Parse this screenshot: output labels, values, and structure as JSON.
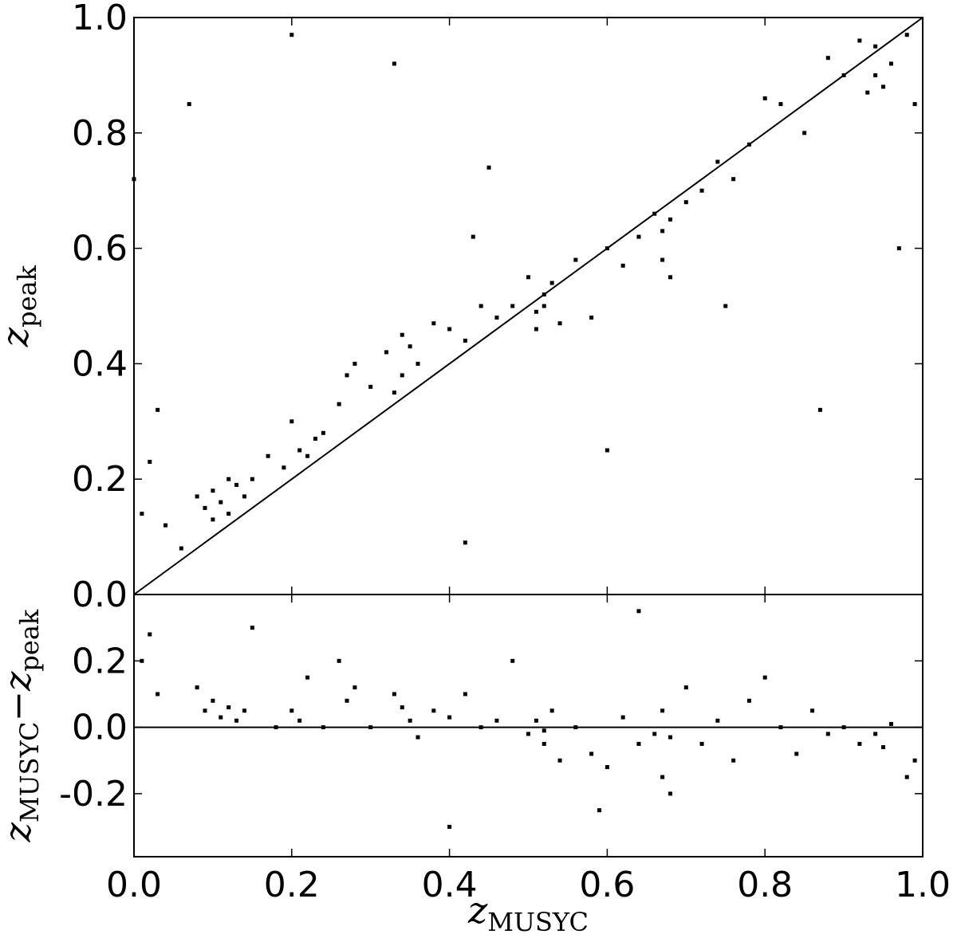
{
  "chart_data": [
    {
      "type": "scatter",
      "ylabel": [
        "z",
        "peak"
      ],
      "color": "#000000",
      "diagonal": true,
      "xlim": [
        0,
        1
      ],
      "ylim": [
        0,
        1
      ],
      "yticks": [
        {
          "value": 0,
          "label": "0.0"
        },
        0.2,
        0.4,
        0.6,
        0.8,
        {
          "value": 1,
          "label": "1.0"
        }
      ],
      "x": [
        0.01,
        0.02,
        0.03,
        0.04,
        0.06,
        0.08,
        0.09,
        0.1,
        0.1,
        0.11,
        0.12,
        0.12,
        0.13,
        0.14,
        0.15,
        0.17,
        0.19,
        0.2,
        0.21,
        0.22,
        0.23,
        0.24,
        0.26,
        0.27,
        0.28,
        0.3,
        0.32,
        0.33,
        0.34,
        0.34,
        0.35,
        0.36,
        0.38,
        0.4,
        0.42,
        0.44,
        0.46,
        0.48,
        0.5,
        0.51,
        0.51,
        0.52,
        0.52,
        0.53,
        0.54,
        0.56,
        0.58,
        0.6,
        0.62,
        0.64,
        0.66,
        0.67,
        0.67,
        0.68,
        0.68,
        0.7,
        0.72,
        0.74,
        0.76,
        0.78,
        0.8,
        0.82,
        0.85,
        0.88,
        0.9,
        0.92,
        0.93,
        0.94,
        0.94,
        0.95,
        0.96,
        0.98,
        0.99,
        0.07,
        0.2,
        0.33,
        0.45,
        0.6,
        0.75,
        0.87,
        0.0,
        0.43,
        0.97,
        0.42
      ],
      "values": [
        0.14,
        0.23,
        0.32,
        0.12,
        0.08,
        0.17,
        0.15,
        0.18,
        0.13,
        0.16,
        0.2,
        0.14,
        0.19,
        0.17,
        0.2,
        0.24,
        0.22,
        0.3,
        0.25,
        0.24,
        0.27,
        0.28,
        0.33,
        0.38,
        0.4,
        0.36,
        0.42,
        0.35,
        0.38,
        0.45,
        0.43,
        0.4,
        0.47,
        0.46,
        0.44,
        0.5,
        0.48,
        0.5,
        0.55,
        0.49,
        0.46,
        0.52,
        0.5,
        0.54,
        0.47,
        0.58,
        0.48,
        0.6,
        0.57,
        0.62,
        0.66,
        0.63,
        0.58,
        0.65,
        0.55,
        0.68,
        0.7,
        0.75,
        0.72,
        0.78,
        0.86,
        0.85,
        0.8,
        0.93,
        0.9,
        0.96,
        0.87,
        0.9,
        0.95,
        0.88,
        0.92,
        0.97,
        0.85,
        0.85,
        0.97,
        0.92,
        0.74,
        0.25,
        0.5,
        0.32,
        0.72,
        0.62,
        0.6,
        0.09
      ]
    },
    {
      "type": "scatter",
      "ylabel": [
        "z",
        "MUSYC",
        "−z",
        "peak"
      ],
      "xlabel": [
        "z",
        "MUSYC"
      ],
      "color": "#000000",
      "hline": 0,
      "xlim": [
        0,
        1
      ],
      "ylim": [
        -0.39,
        0.4
      ],
      "xticks": [
        {
          "value": 0,
          "label": "0.0"
        },
        0.2,
        0.4,
        0.6,
        0.8,
        {
          "value": 1,
          "label": "1.0"
        }
      ],
      "yticks": [
        -0.2,
        {
          "value": 0,
          "label": "0.0"
        },
        0.2
      ],
      "x": [
        0.01,
        0.02,
        0.03,
        0.08,
        0.09,
        0.1,
        0.11,
        0.12,
        0.13,
        0.14,
        0.15,
        0.18,
        0.2,
        0.21,
        0.22,
        0.24,
        0.26,
        0.27,
        0.28,
        0.3,
        0.33,
        0.34,
        0.35,
        0.36,
        0.38,
        0.4,
        0.42,
        0.44,
        0.46,
        0.48,
        0.5,
        0.51,
        0.52,
        0.52,
        0.53,
        0.54,
        0.56,
        0.58,
        0.6,
        0.62,
        0.64,
        0.66,
        0.67,
        0.67,
        0.68,
        0.68,
        0.7,
        0.72,
        0.74,
        0.76,
        0.78,
        0.8,
        0.82,
        0.84,
        0.86,
        0.88,
        0.9,
        0.92,
        0.94,
        0.95,
        0.96,
        0.98,
        0.99,
        0.64,
        0.4,
        0.59
      ],
      "values": [
        0.2,
        0.28,
        0.1,
        0.12,
        0.05,
        0.08,
        0.03,
        0.06,
        0.02,
        0.05,
        0.3,
        0.0,
        0.05,
        0.02,
        0.15,
        0.0,
        0.2,
        0.08,
        0.12,
        0.0,
        0.1,
        0.06,
        0.02,
        -0.03,
        0.05,
        0.03,
        0.1,
        0.0,
        0.02,
        0.2,
        -0.02,
        0.02,
        -0.05,
        -0.01,
        0.05,
        -0.1,
        0.0,
        -0.08,
        -0.12,
        0.03,
        -0.05,
        -0.02,
        -0.15,
        0.05,
        -0.03,
        -0.2,
        0.12,
        -0.05,
        0.02,
        -0.1,
        0.08,
        0.15,
        0.0,
        -0.08,
        0.05,
        -0.02,
        0.0,
        -0.05,
        -0.02,
        -0.06,
        0.01,
        -0.15,
        -0.1,
        0.35,
        -0.3,
        -0.25
      ]
    }
  ]
}
